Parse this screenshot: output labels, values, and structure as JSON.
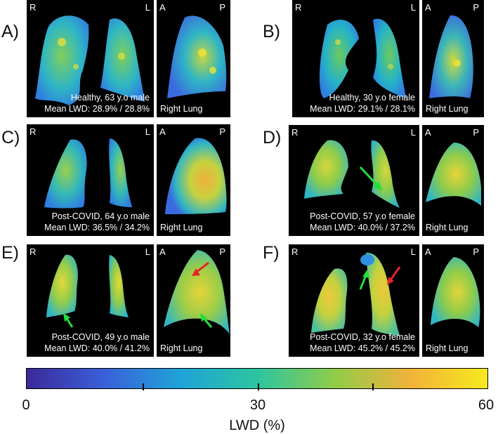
{
  "panels": [
    {
      "letter": "A)",
      "left_r": "R",
      "left_l": "L",
      "right_a": "A",
      "right_p": "P",
      "caption1": "Healthy, 63 y.o male",
      "caption2": "Mean LWD: 28.9% / 28.8%",
      "right_label": "Right Lung"
    },
    {
      "letter": "B)",
      "left_r": "R",
      "left_l": "L",
      "right_a": "A",
      "right_p": "P",
      "caption1": "Healthy, 30 y.o female",
      "caption2": "Mean LWD: 29.1% / 28.1%",
      "right_label": "Right Lung"
    },
    {
      "letter": "C)",
      "left_r": "R",
      "left_l": "L",
      "right_a": "A",
      "right_p": "P",
      "caption1": "Post-COVID, 64 y.o male",
      "caption2": "Mean LWD: 36.5% / 34.2%",
      "right_label": "Right Lung"
    },
    {
      "letter": "D)",
      "left_r": "R",
      "left_l": "L",
      "right_a": "A",
      "right_p": "P",
      "caption1": "Post-COVID, 57 y.o female",
      "caption2": "Mean LWD: 40.0% / 37.2%",
      "right_label": "Right Lung"
    },
    {
      "letter": "E)",
      "left_r": "R",
      "left_l": "L",
      "right_a": "A",
      "right_p": "P",
      "caption1": "Post-COVID, 49 y.o male",
      "caption2": "Mean LWD: 40.0% / 41.2%",
      "right_label": "Right Lung"
    },
    {
      "letter": "F)",
      "left_r": "R",
      "left_l": "L",
      "right_a": "A",
      "right_p": "P",
      "caption1": "Post-COVID, 32 y.o female",
      "caption2": "Mean LWD: 45.2% / 45.2%",
      "right_label": "Right Lung"
    }
  ],
  "colorbar": {
    "min_label": "0",
    "mid_label": "30",
    "max_label": "60",
    "title": "LWD (%)",
    "colors": [
      "#3b2a9a",
      "#3a5fd8",
      "#1fa3d8",
      "#2cc5a0",
      "#8fcc4a",
      "#f2b23a",
      "#f7ea1e"
    ]
  },
  "arrows": {
    "green": "#22e03a",
    "red": "#e5232a"
  }
}
